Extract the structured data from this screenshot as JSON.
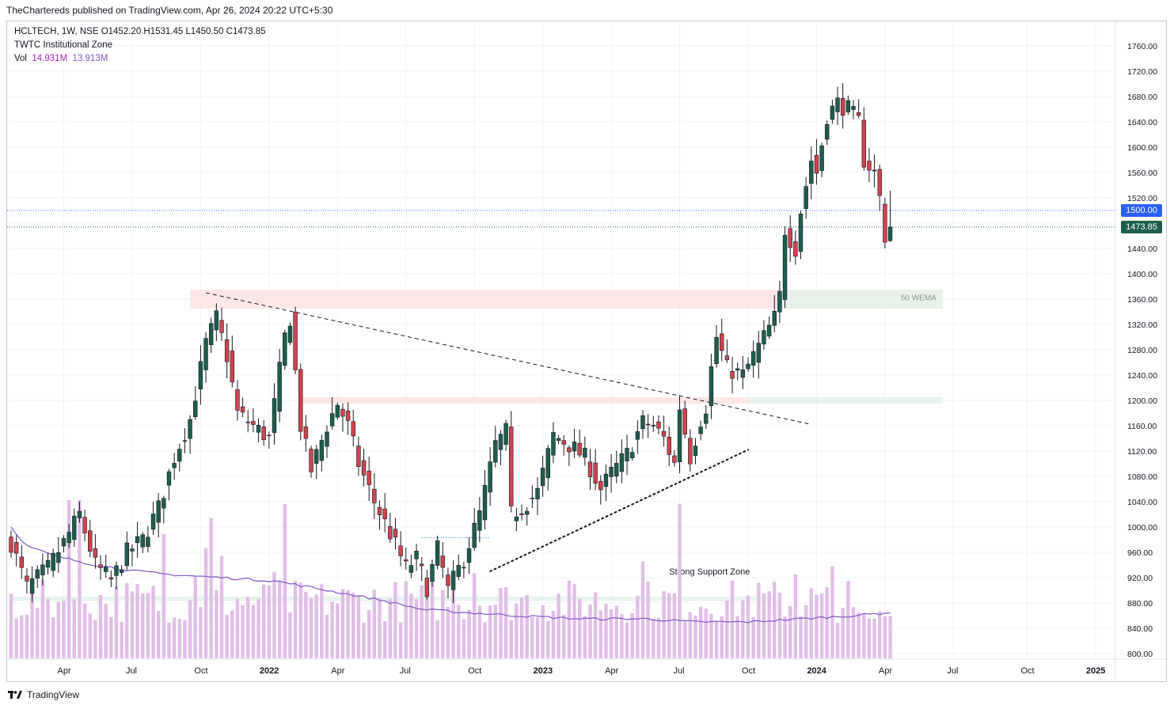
{
  "header": {
    "publisher_line": "TheChartereds published on TradingView.com, Apr 26, 2024 20:22 UTC+5:30"
  },
  "legend": {
    "symbol_line": "HCLTECH, 1W, NSE  O1452.20  H1531.45  L1450.50  C1473.85",
    "indicator": "TWTC Institutional Zone",
    "vol_label": "Vol",
    "vol_value_1": "14.931M",
    "vol_value_2": "13.913M"
  },
  "footer": {
    "brand": "TradingView"
  },
  "colors": {
    "up": "#1e5e4e",
    "down": "#d2434b",
    "volume": "#e1bee7",
    "vol_ma": "#7e57c2",
    "resist_zone": "#fde3e3",
    "support_zone": "#e4f2e9",
    "badge_last": "#1e5e4e",
    "badge_level": "#2962ff"
  },
  "chart_data": {
    "type": "candlestick",
    "symbol": "HCLTECH",
    "interval": "1W",
    "exchange": "NSE",
    "last_bar": {
      "open": 1452.2,
      "high": 1531.45,
      "low": 1450.5,
      "close": 1473.85
    },
    "y_axis": {
      "min": 800,
      "max": 1780,
      "ticks": [
        800,
        840,
        880,
        920,
        960,
        1000,
        1040,
        1080,
        1120,
        1160,
        1200,
        1240,
        1280,
        1320,
        1360,
        1400,
        1440,
        1480,
        1520,
        1560,
        1600,
        1640,
        1680,
        1720,
        1760
      ]
    },
    "x_axis_labels": [
      {
        "label": "Apr",
        "week": 10
      },
      {
        "label": "Jul",
        "week": 23
      },
      {
        "label": "Oct",
        "week": 36
      },
      {
        "label": "2022",
        "week": 49
      },
      {
        "label": "Apr",
        "week": 62
      },
      {
        "label": "Jul",
        "week": 75
      },
      {
        "label": "Oct",
        "week": 88
      },
      {
        "label": "2023",
        "week": 101
      },
      {
        "label": "Apr",
        "week": 114
      },
      {
        "label": "Jul",
        "week": 127
      },
      {
        "label": "Oct",
        "week": 140
      },
      {
        "label": "2024",
        "week": 153
      },
      {
        "label": "Apr",
        "week": 166
      },
      {
        "label": "Jul",
        "week": 179
      },
      {
        "label": "Oct",
        "week": 193
      },
      {
        "label": "2025",
        "week": 206
      }
    ],
    "price_badges": [
      {
        "label": "1500.00",
        "value": 1500,
        "kind": "level"
      },
      {
        "label": "1473.85",
        "value": 1473.85,
        "kind": "last"
      }
    ],
    "anchors": [
      [
        0,
        975
      ],
      [
        3,
        905
      ],
      [
        7,
        935
      ],
      [
        10,
        975
      ],
      [
        13,
        1020
      ],
      [
        16,
        940
      ],
      [
        19,
        915
      ],
      [
        22,
        960
      ],
      [
        25,
        980
      ],
      [
        28,
        1030
      ],
      [
        31,
        1110
      ],
      [
        34,
        1170
      ],
      [
        37,
        1290
      ],
      [
        39,
        1330
      ],
      [
        41,
        1270
      ],
      [
        43,
        1180
      ],
      [
        46,
        1160
      ],
      [
        49,
        1140
      ],
      [
        52,
        1300
      ],
      [
        53,
        1330
      ],
      [
        55,
        1160
      ],
      [
        57,
        1090
      ],
      [
        60,
        1160
      ],
      [
        62,
        1195
      ],
      [
        64,
        1160
      ],
      [
        66,
        1100
      ],
      [
        69,
        1040
      ],
      [
        72,
        990
      ],
      [
        75,
        935
      ],
      [
        77,
        950
      ],
      [
        79,
        905
      ],
      [
        81,
        965
      ],
      [
        83,
        900
      ],
      [
        86,
        950
      ],
      [
        89,
        1020
      ],
      [
        92,
        1130
      ],
      [
        94,
        1150
      ],
      [
        95,
        1020
      ],
      [
        97,
        1030
      ],
      [
        100,
        1055
      ],
      [
        103,
        1145
      ],
      [
        106,
        1130
      ],
      [
        109,
        1110
      ],
      [
        112,
        1060
      ],
      [
        114,
        1085
      ],
      [
        117,
        1115
      ],
      [
        120,
        1165
      ],
      [
        122,
        1160
      ],
      [
        124,
        1140
      ],
      [
        126,
        1100
      ],
      [
        127,
        1190
      ],
      [
        129,
        1110
      ],
      [
        131,
        1170
      ],
      [
        132,
        1190
      ],
      [
        133,
        1250
      ],
      [
        134,
        1300
      ],
      [
        136,
        1250
      ],
      [
        139,
        1240
      ],
      [
        141,
        1270
      ],
      [
        143,
        1300
      ],
      [
        145,
        1330
      ],
      [
        146,
        1365
      ],
      [
        147,
        1470
      ],
      [
        149,
        1440
      ],
      [
        150,
        1500
      ],
      [
        152,
        1580
      ],
      [
        153,
        1560
      ],
      [
        155,
        1650
      ],
      [
        157,
        1670
      ],
      [
        159,
        1660
      ],
      [
        161,
        1640
      ],
      [
        162,
        1580
      ],
      [
        164,
        1560
      ],
      [
        165,
        1520
      ],
      [
        166,
        1465
      ],
      [
        167,
        1470
      ]
    ],
    "last_candles": [
      {
        "week": 166,
        "open": 1510,
        "high": 1520,
        "low": 1440,
        "close": 1450
      },
      {
        "week": 167,
        "open": 1452.2,
        "high": 1531.45,
        "low": 1450.5,
        "close": 1473.85
      }
    ],
    "volume_ma_anchors": [
      [
        0,
        1000
      ],
      [
        3,
        970
      ],
      [
        8,
        955
      ],
      [
        16,
        940
      ],
      [
        24,
        930
      ],
      [
        30,
        925
      ],
      [
        40,
        920
      ],
      [
        50,
        915
      ],
      [
        60,
        900
      ],
      [
        70,
        885
      ],
      [
        78,
        870
      ],
      [
        86,
        865
      ],
      [
        96,
        860
      ],
      [
        108,
        855
      ],
      [
        120,
        855
      ],
      [
        130,
        850
      ],
      [
        140,
        850
      ],
      [
        150,
        855
      ],
      [
        160,
        860
      ],
      [
        167,
        865
      ]
    ],
    "zones": [
      {
        "kind": "resistance",
        "from_week": 34,
        "to_week": 177,
        "low": 1345,
        "high": 1375
      },
      {
        "kind": "support",
        "from_week": 146,
        "to_week": 177,
        "low": 1345,
        "high": 1375,
        "label": "50 WEMA"
      },
      {
        "kind": "resistance",
        "from_week": 55,
        "to_week": 140,
        "low": 1195,
        "high": 1205
      },
      {
        "kind": "support",
        "from_week": 140,
        "to_week": 177,
        "low": 1195,
        "high": 1205
      },
      {
        "kind": "support",
        "from_week": 0,
        "to_week": 145,
        "low": 883,
        "high": 890,
        "label": "Strong Support Zone"
      }
    ],
    "lines": [
      {
        "kind": "dashed",
        "from": [
          37,
          1370
        ],
        "to": [
          152,
          1162
        ]
      },
      {
        "kind": "dotted",
        "from": [
          91,
          930
        ],
        "to": [
          140,
          1122
        ]
      },
      {
        "kind": "dotted-blue",
        "from": [
          78,
          983
        ],
        "to": [
          91,
          983
        ]
      }
    ],
    "horizontal_levels": [
      1500,
      1473.85
    ]
  }
}
